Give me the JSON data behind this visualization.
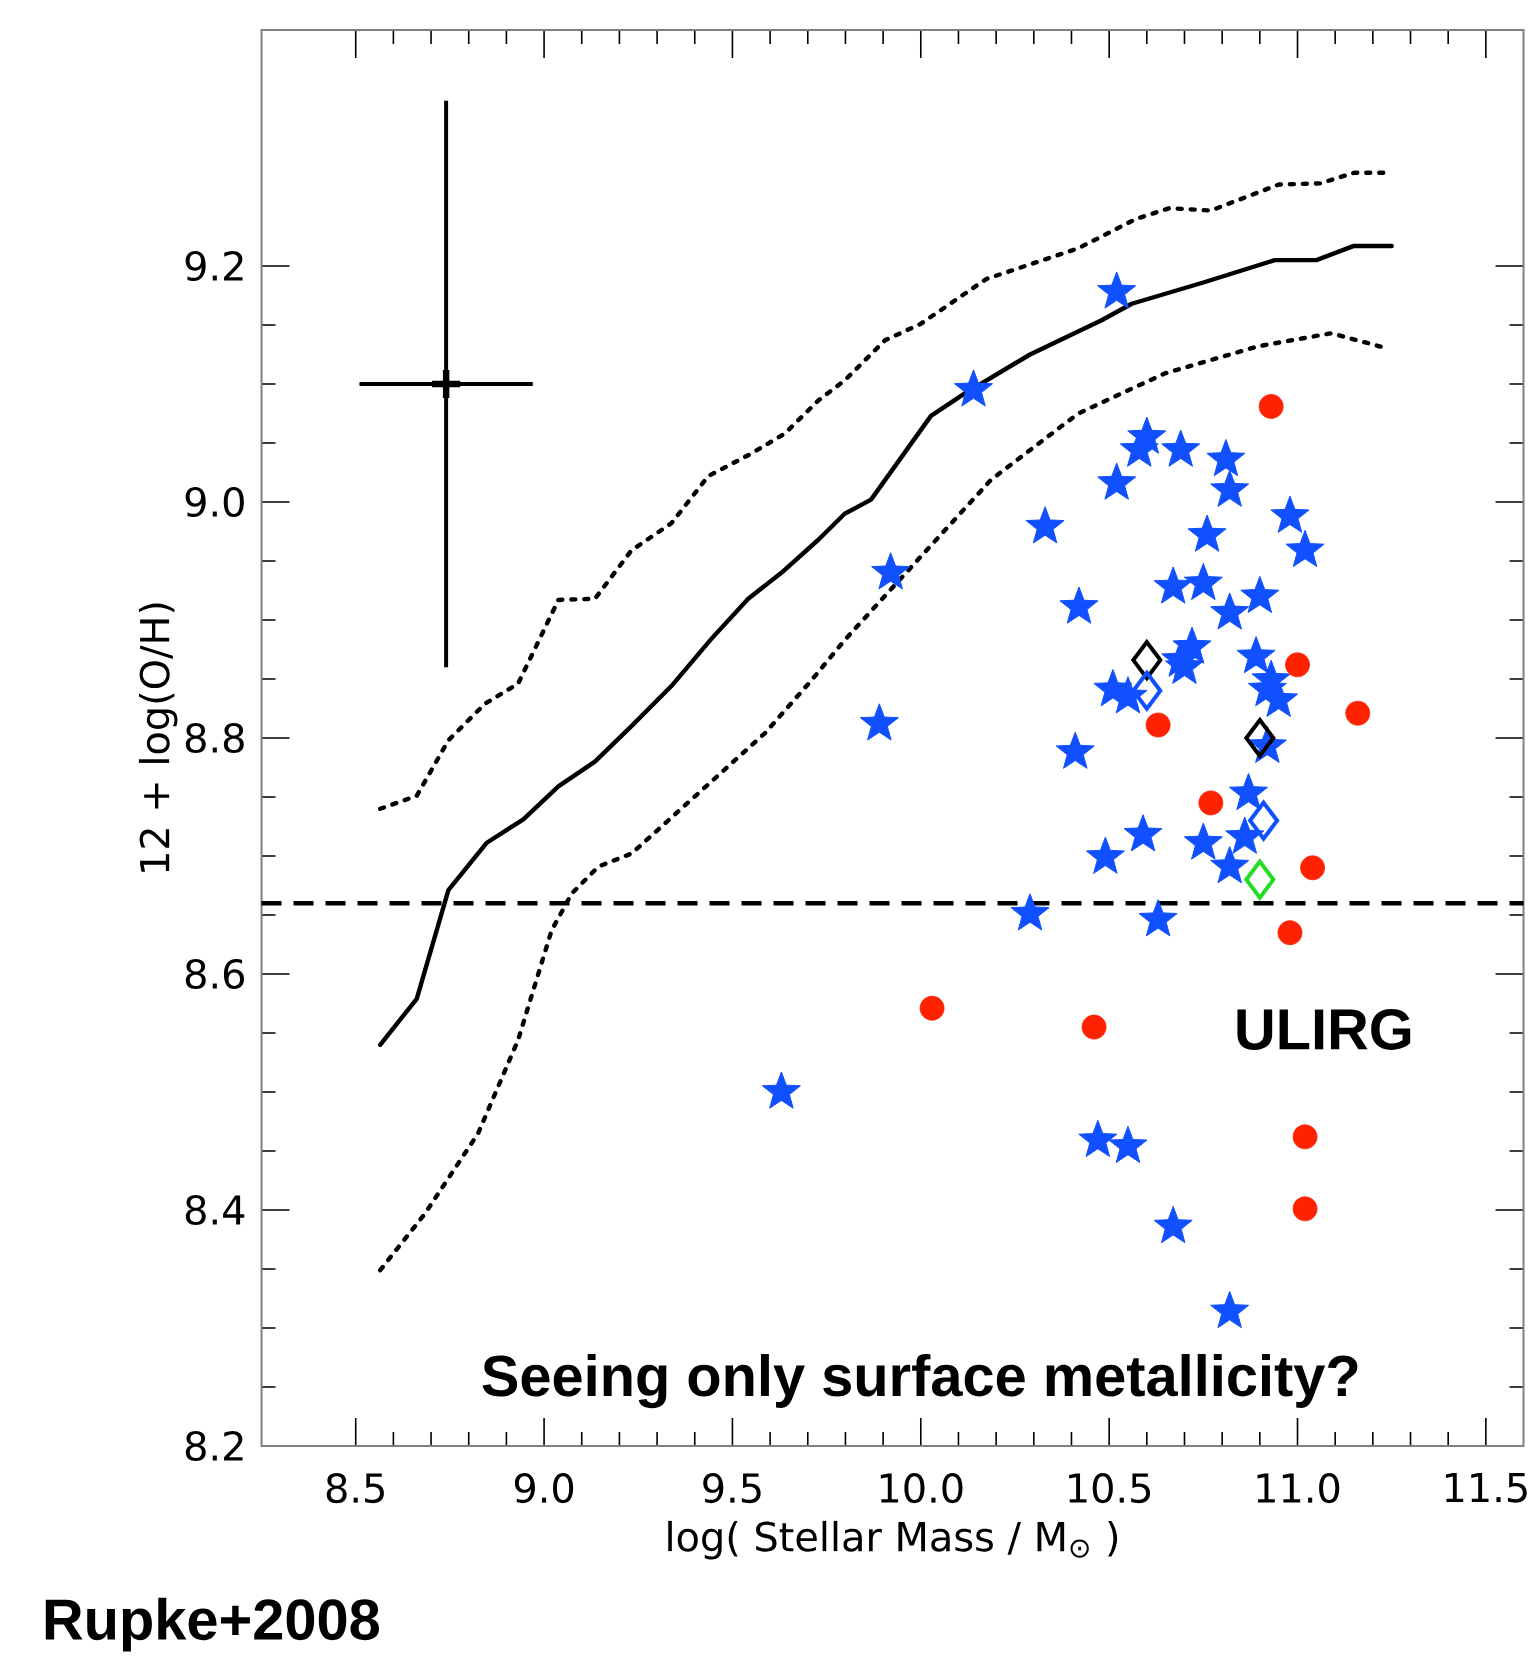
{
  "chart_data": {
    "type": "scatter",
    "xlabel": "log( Stellar Mass / M$_{⊙}$ )",
    "ylabel": "12 + log(O/H)",
    "annotations": [
      "ULIRG",
      "Seeing only surface metallicity?",
      "Rupke+2008"
    ],
    "xlim": [
      8.25,
      11.6
    ],
    "ylim": [
      8.2,
      9.4
    ],
    "xticks": [
      8.5,
      {
        "value": 9,
        "label": "9.0"
      },
      9.5,
      {
        "value": 10,
        "label": "10.0"
      },
      10.5,
      {
        "value": 11,
        "label": "11.0"
      },
      11.5
    ],
    "yticks": [
      8.2,
      8.4,
      8.6,
      8.8,
      {
        "value": 9,
        "label": "9.0"
      },
      9.2
    ],
    "ref_lines": [
      {
        "axis": "y",
        "value": 8.66,
        "line_style": "dashed",
        "color": "#000000"
      }
    ],
    "series": [
      {
        "type": "line",
        "color": "#000000",
        "line_style": "solid",
        "marker": "none",
        "x": [
          8.565,
          8.662,
          8.746,
          8.847,
          8.945,
          9.038,
          9.135,
          9.232,
          9.338,
          9.444,
          9.542,
          9.63,
          9.728,
          9.798,
          9.868,
          10.027,
          10.117,
          10.29,
          10.48,
          10.56,
          10.75,
          10.94,
          11.05,
          11.15,
          11.25
        ],
        "values": [
          8.54,
          8.579,
          8.671,
          8.711,
          8.731,
          8.759,
          8.78,
          8.81,
          8.844,
          8.884,
          8.918,
          8.94,
          8.968,
          8.99,
          9.002,
          9.073,
          9.092,
          9.125,
          9.154,
          9.168,
          9.186,
          9.205,
          9.205,
          9.217,
          9.217
        ]
      },
      {
        "type": "line",
        "color": "#000000",
        "line_style": "dotted",
        "marker": "none",
        "x": [
          8.565,
          8.662,
          8.746,
          8.843,
          8.931,
          9.038,
          9.135,
          9.232,
          9.338,
          9.436,
          9.55,
          9.639,
          9.728,
          9.798,
          9.905,
          10.0,
          10.174,
          10.418,
          10.572,
          10.66,
          10.77,
          10.95,
          11.06,
          11.15,
          11.25
        ],
        "values": [
          8.74,
          8.751,
          8.798,
          8.829,
          8.846,
          8.917,
          8.918,
          8.959,
          8.982,
          9.022,
          9.041,
          9.058,
          9.086,
          9.103,
          9.137,
          9.151,
          9.189,
          9.215,
          9.24,
          9.249,
          9.247,
          9.269,
          9.27,
          9.279,
          9.279
        ]
      },
      {
        "type": "line",
        "color": "#000000",
        "line_style": "dotted",
        "marker": "none",
        "x": [
          8.565,
          8.684,
          8.825,
          8.931,
          9.02,
          9.073,
          9.144,
          9.232,
          9.409,
          9.586,
          9.71,
          9.798,
          9.975,
          10.187,
          10.418,
          10.648,
          10.896,
          11.09,
          11.24
        ],
        "values": [
          8.349,
          8.397,
          8.465,
          8.544,
          8.637,
          8.668,
          8.691,
          8.702,
          8.753,
          8.804,
          8.849,
          8.883,
          8.945,
          9.019,
          9.075,
          9.109,
          9.132,
          9.143,
          9.13
        ]
      },
      {
        "color": "#1050ff",
        "marker": "star",
        "x": [
          10.14,
          10.52,
          10.6,
          10.58,
          10.69,
          10.81,
          10.52,
          10.82,
          10.33,
          10.76,
          10.98,
          11.02,
          9.92,
          10.42,
          10.67,
          10.75,
          10.9,
          10.82,
          10.72,
          10.69,
          10.89,
          10.93,
          9.89,
          10.51,
          10.55,
          10.7,
          10.92,
          10.95,
          10.92,
          10.41,
          10.87,
          10.59,
          10.49,
          10.75,
          10.86,
          10.82,
          10.29,
          10.63,
          9.63,
          10.47,
          10.55,
          10.67,
          10.82
        ],
        "values": [
          9.095,
          9.178,
          9.055,
          9.044,
          9.044,
          9.036,
          9.016,
          9.01,
          8.979,
          8.972,
          8.988,
          8.959,
          8.94,
          8.911,
          8.928,
          8.931,
          8.92,
          8.906,
          8.877,
          8.866,
          8.869,
          8.849,
          8.812,
          8.841,
          8.835,
          8.86,
          8.841,
          8.832,
          8.793,
          8.788,
          8.753,
          8.718,
          8.699,
          8.711,
          8.716,
          8.691,
          8.651,
          8.646,
          8.5,
          8.459,
          8.454,
          8.386,
          8.314
        ]
      },
      {
        "color": "#ff2200",
        "marker": "circle",
        "x": [
          10.93,
          11.0,
          10.63,
          11.16,
          10.77,
          11.04,
          10.98,
          10.03,
          10.46,
          11.02,
          11.02
        ],
        "values": [
          9.081,
          8.862,
          8.811,
          8.821,
          8.745,
          8.69,
          8.635,
          8.571,
          8.555,
          8.462,
          8.401
        ]
      },
      {
        "color": "#000000",
        "marker": "diamond",
        "x": [
          10.6,
          10.9
        ],
        "values": [
          8.866,
          8.8
        ]
      },
      {
        "color": "#1050ff",
        "marker": "diamond",
        "x": [
          10.6,
          10.91
        ],
        "values": [
          8.84,
          8.73
        ]
      },
      {
        "color": "#22dd22",
        "marker": "diamond",
        "x": [
          10.9
        ],
        "values": [
          8.68
        ]
      },
      {
        "color": "#000000",
        "marker": "cross",
        "x": [
          8.74
        ],
        "values": [
          9.1
        ],
        "errors": [
          0.24
        ],
        "xerrors": [
          0.23
        ]
      }
    ]
  }
}
